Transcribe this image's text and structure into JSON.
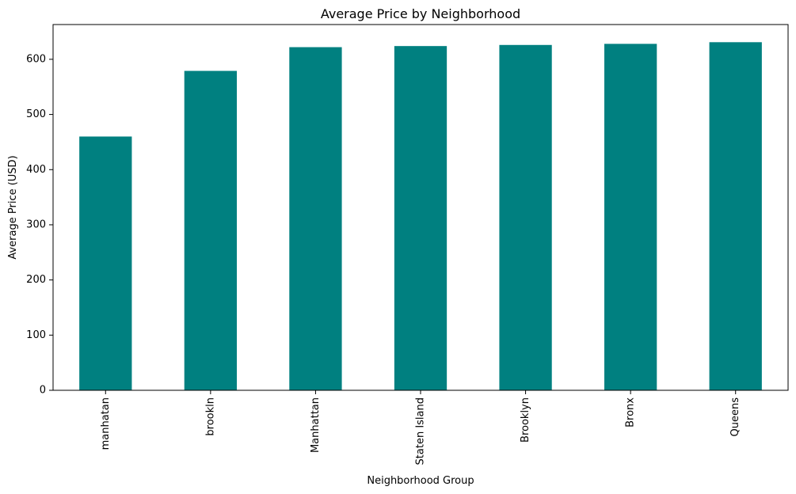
{
  "chart_data": {
    "type": "bar",
    "title": "Average Price by Neighborhood",
    "xlabel": "Neighborhood Group",
    "ylabel": "Average Price (USD)",
    "categories": [
      "manhatan",
      "brookln",
      "Manhattan",
      "Staten Island",
      "Brooklyn",
      "Bronx",
      "Queens"
    ],
    "values": [
      460,
      579,
      622,
      624,
      626,
      628,
      631
    ],
    "ylim": [
      0,
      663
    ],
    "yticks": [
      0,
      100,
      200,
      300,
      400,
      500,
      600
    ],
    "bar_color": "#008080",
    "grid": false,
    "legend": "none"
  }
}
